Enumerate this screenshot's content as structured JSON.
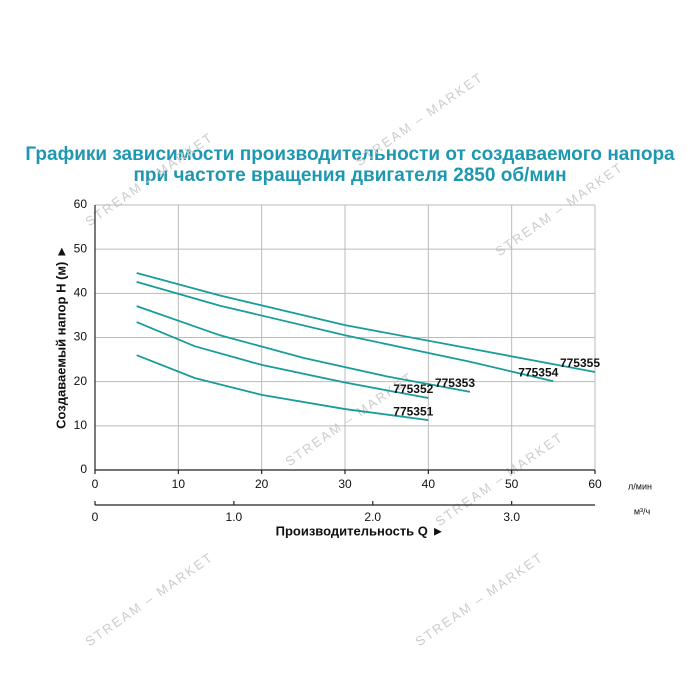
{
  "chart_data": {
    "type": "line",
    "title": "Графики зависимости производительности от создаваемого напора",
    "subtitle": "при частоте вращения двигателя 2850 об/мин",
    "x_label": "Производительность Q ►",
    "y_label": "Создаваемый напор Н (м) ►",
    "x_unit": "л/мин",
    "x2_unit": "м³/ч",
    "watermark": "STREAM – MARKET",
    "xlim": [
      0,
      60
    ],
    "xticks": [
      0,
      10,
      20,
      30,
      40,
      50,
      60
    ],
    "x2lim": [
      0,
      3.6
    ],
    "x2ticks": [
      0,
      {
        "value": 1,
        "label": "1.0"
      },
      {
        "value": 2,
        "label": "2.0"
      },
      {
        "value": 3,
        "label": "3.0"
      }
    ],
    "ylim": [
      0,
      60
    ],
    "yticks": [
      0,
      10,
      20,
      30,
      40,
      50,
      60
    ],
    "grid": true,
    "series": [
      {
        "name": "775355",
        "color": "#1a9c9a",
        "x": [
          5,
          15,
          30,
          45,
          60
        ],
        "values": [
          44.6,
          39.5,
          32.8,
          27.5,
          22.2
        ]
      },
      {
        "name": "775354",
        "color": "#1a9c9a",
        "x": [
          5,
          15,
          30,
          45,
          55
        ],
        "values": [
          42.6,
          37.2,
          30.5,
          24.5,
          20.1
        ]
      },
      {
        "name": "775353",
        "color": "#1a9c9a",
        "x": [
          5,
          15,
          25,
          35,
          45
        ],
        "values": [
          37.1,
          30.5,
          25.4,
          21.2,
          17.7
        ]
      },
      {
        "name": "775352",
        "color": "#1a9c9a",
        "x": [
          5,
          12,
          20,
          30,
          40
        ],
        "values": [
          33.5,
          28.0,
          23.8,
          19.8,
          16.3
        ]
      },
      {
        "name": "775351",
        "color": "#1a9c9a",
        "x": [
          5,
          12,
          20,
          30,
          40
        ],
        "values": [
          26.0,
          20.8,
          17.0,
          13.8,
          11.3
        ]
      }
    ]
  }
}
